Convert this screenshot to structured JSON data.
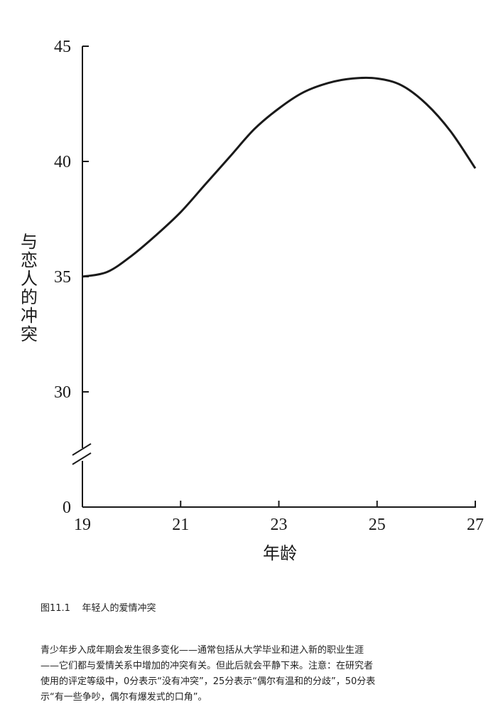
{
  "chart_data": {
    "type": "line",
    "title": "",
    "xlabel": "年龄",
    "ylabel": "与恋人的冲突",
    "xlim": [
      19,
      27
    ],
    "ylim": [
      25,
      45
    ],
    "y_axis_break": true,
    "grid": false,
    "x_ticks": [
      "19",
      "21",
      "23",
      "25",
      "27"
    ],
    "y_ticks": [
      "0",
      "30",
      "35",
      "40",
      "45"
    ],
    "x": [
      19,
      19.5,
      20,
      20.5,
      21,
      21.5,
      22,
      22.5,
      23,
      23.5,
      24,
      24.5,
      25,
      25.5,
      26,
      26.5,
      27
    ],
    "series": [
      {
        "values": [
          35.0,
          35.2,
          35.9,
          36.8,
          37.8,
          39.0,
          40.2,
          41.4,
          42.3,
          43.0,
          43.4,
          43.6,
          43.6,
          43.3,
          42.5,
          41.3,
          39.7
        ]
      }
    ],
    "line_color": "#1a1a1a"
  },
  "caption": {
    "figure_number": "图11.1",
    "text": "年轻人的爱情冲突"
  },
  "body": {
    "lines": [
      "青少年步入成年期会发生很多变化——通常包括从大学毕业和进入新的职业生涯",
      "——它们都与爱情关系中增加的冲突有关。但此后就会平静下来。注意：在研究者",
      "使用的评定等级中，0分表示“没有冲突”，25分表示“偶尔有温和的分歧”，50分表",
      "示“有一些争吵，偶尔有爆发式的口角”。"
    ]
  }
}
